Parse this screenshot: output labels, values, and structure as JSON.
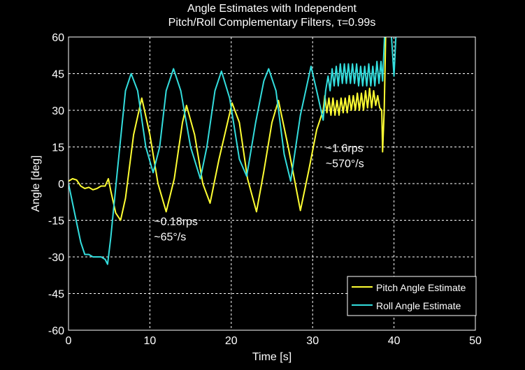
{
  "chart_data": {
    "type": "line",
    "title_lines": [
      "Angle Estimates with Independent",
      "Pitch/Roll Complementary Filters, τ=0.99s"
    ],
    "xlabel": "Time [s]",
    "ylabel": "Angle [deg]",
    "xlim": [
      0,
      50
    ],
    "ylim": [
      -60,
      60
    ],
    "xticks": [
      0,
      10,
      20,
      30,
      40,
      50
    ],
    "yticks": [
      -60,
      -45,
      -30,
      -15,
      0,
      15,
      30,
      45,
      60
    ],
    "grid": true,
    "background": "#000000",
    "legend_position": "bottom-right",
    "annotations": [
      {
        "lines": [
          "~0.18rps",
          "~65°/s"
        ],
        "x": 10.5,
        "y": -17
      },
      {
        "lines": [
          "~1.6rps",
          "~570°/s"
        ],
        "x": 31.6,
        "y": 13
      }
    ],
    "series": [
      {
        "name": "Pitch Angle Estimate",
        "color": "#ffff33",
        "points": [
          [
            0,
            1
          ],
          [
            0.5,
            2
          ],
          [
            1,
            1.5
          ],
          [
            1.5,
            -1
          ],
          [
            2,
            -2
          ],
          [
            2.5,
            -1.5
          ],
          [
            3,
            -2.5
          ],
          [
            3.5,
            -2
          ],
          [
            4,
            -1
          ],
          [
            4.5,
            -1
          ],
          [
            4.9,
            2
          ],
          [
            5.2,
            -3
          ],
          [
            5.8,
            -12
          ],
          [
            6.4,
            -15
          ],
          [
            7,
            -6
          ],
          [
            8,
            20
          ],
          [
            9,
            35
          ],
          [
            10,
            20
          ],
          [
            11,
            0
          ],
          [
            12,
            -11.5
          ],
          [
            13,
            2
          ],
          [
            14,
            25
          ],
          [
            14.5,
            32
          ],
          [
            15.5,
            20
          ],
          [
            16.5,
            0
          ],
          [
            17.4,
            -8
          ],
          [
            18.5,
            10
          ],
          [
            20.1,
            33
          ],
          [
            21,
            25
          ],
          [
            22,
            2
          ],
          [
            23.1,
            -11.5
          ],
          [
            24,
            5
          ],
          [
            25,
            25
          ],
          [
            25.8,
            34
          ],
          [
            27,
            15
          ],
          [
            28.5,
            -11
          ],
          [
            29.5,
            5
          ],
          [
            30.5,
            22
          ],
          [
            31.3,
            30
          ],
          [
            31.5,
            36
          ],
          [
            31.75,
            29
          ],
          [
            32,
            35
          ],
          [
            32.25,
            28
          ],
          [
            32.5,
            35
          ],
          [
            32.75,
            28
          ],
          [
            33,
            34
          ],
          [
            33.25,
            28
          ],
          [
            33.5,
            35
          ],
          [
            33.75,
            29
          ],
          [
            34,
            35
          ],
          [
            34.25,
            29
          ],
          [
            34.5,
            36
          ],
          [
            34.75,
            30
          ],
          [
            35,
            36
          ],
          [
            35.25,
            30
          ],
          [
            35.5,
            37
          ],
          [
            35.75,
            30
          ],
          [
            36,
            37
          ],
          [
            36.25,
            30
          ],
          [
            36.5,
            38
          ],
          [
            36.75,
            31
          ],
          [
            37,
            39
          ],
          [
            37.25,
            31
          ],
          [
            37.5,
            38
          ],
          [
            37.75,
            32
          ],
          [
            38,
            36
          ],
          [
            38.25,
            31
          ],
          [
            38.5,
            30
          ],
          [
            38.6,
            13
          ],
          [
            38.8,
            30
          ],
          [
            39,
            65
          ],
          [
            40,
            65
          ]
        ]
      },
      {
        "name": "Roll Angle Estimate",
        "color": "#33dddd",
        "points": [
          [
            0,
            0
          ],
          [
            0.5,
            -8
          ],
          [
            1,
            -16
          ],
          [
            1.5,
            -24
          ],
          [
            2,
            -29
          ],
          [
            2.5,
            -29
          ],
          [
            3,
            -30
          ],
          [
            3.5,
            -30
          ],
          [
            4,
            -30
          ],
          [
            4.5,
            -31
          ],
          [
            4.8,
            -33
          ],
          [
            5.2,
            -22
          ],
          [
            6,
            5
          ],
          [
            7,
            38
          ],
          [
            7.7,
            45
          ],
          [
            8.5,
            38
          ],
          [
            9.5,
            15
          ],
          [
            10.4,
            4.5
          ],
          [
            11.2,
            15
          ],
          [
            12,
            38
          ],
          [
            12.9,
            47
          ],
          [
            13.8,
            38
          ],
          [
            15,
            15
          ],
          [
            16.2,
            2
          ],
          [
            17,
            15
          ],
          [
            18,
            38
          ],
          [
            18.8,
            46
          ],
          [
            19.8,
            35
          ],
          [
            21,
            10
          ],
          [
            21.9,
            3
          ],
          [
            23,
            25
          ],
          [
            24,
            42
          ],
          [
            24.6,
            47
          ],
          [
            25.5,
            38
          ],
          [
            26.5,
            12
          ],
          [
            27.3,
            1
          ],
          [
            28.5,
            28
          ],
          [
            29.8,
            48
          ],
          [
            30.5,
            38
          ],
          [
            31.3,
            26
          ],
          [
            31.6,
            38
          ],
          [
            31.9,
            44
          ],
          [
            32.15,
            38
          ],
          [
            32.4,
            47
          ],
          [
            32.65,
            40
          ],
          [
            32.9,
            48
          ],
          [
            33.15,
            40
          ],
          [
            33.4,
            49
          ],
          [
            33.65,
            41
          ],
          [
            33.9,
            49
          ],
          [
            34.15,
            41
          ],
          [
            34.4,
            49
          ],
          [
            34.65,
            41
          ],
          [
            34.9,
            49
          ],
          [
            35.15,
            41
          ],
          [
            35.4,
            49
          ],
          [
            35.65,
            40
          ],
          [
            35.9,
            48
          ],
          [
            36.15,
            40
          ],
          [
            36.4,
            48
          ],
          [
            36.65,
            40
          ],
          [
            36.9,
            49
          ],
          [
            37.15,
            40
          ],
          [
            37.4,
            48
          ],
          [
            37.65,
            40
          ],
          [
            37.9,
            50
          ],
          [
            38.15,
            41
          ],
          [
            38.4,
            50
          ],
          [
            38.6,
            42
          ],
          [
            38.9,
            65
          ],
          [
            39.6,
            65
          ],
          [
            40,
            44
          ],
          [
            40.3,
            65
          ],
          [
            41,
            65
          ]
        ]
      }
    ]
  }
}
